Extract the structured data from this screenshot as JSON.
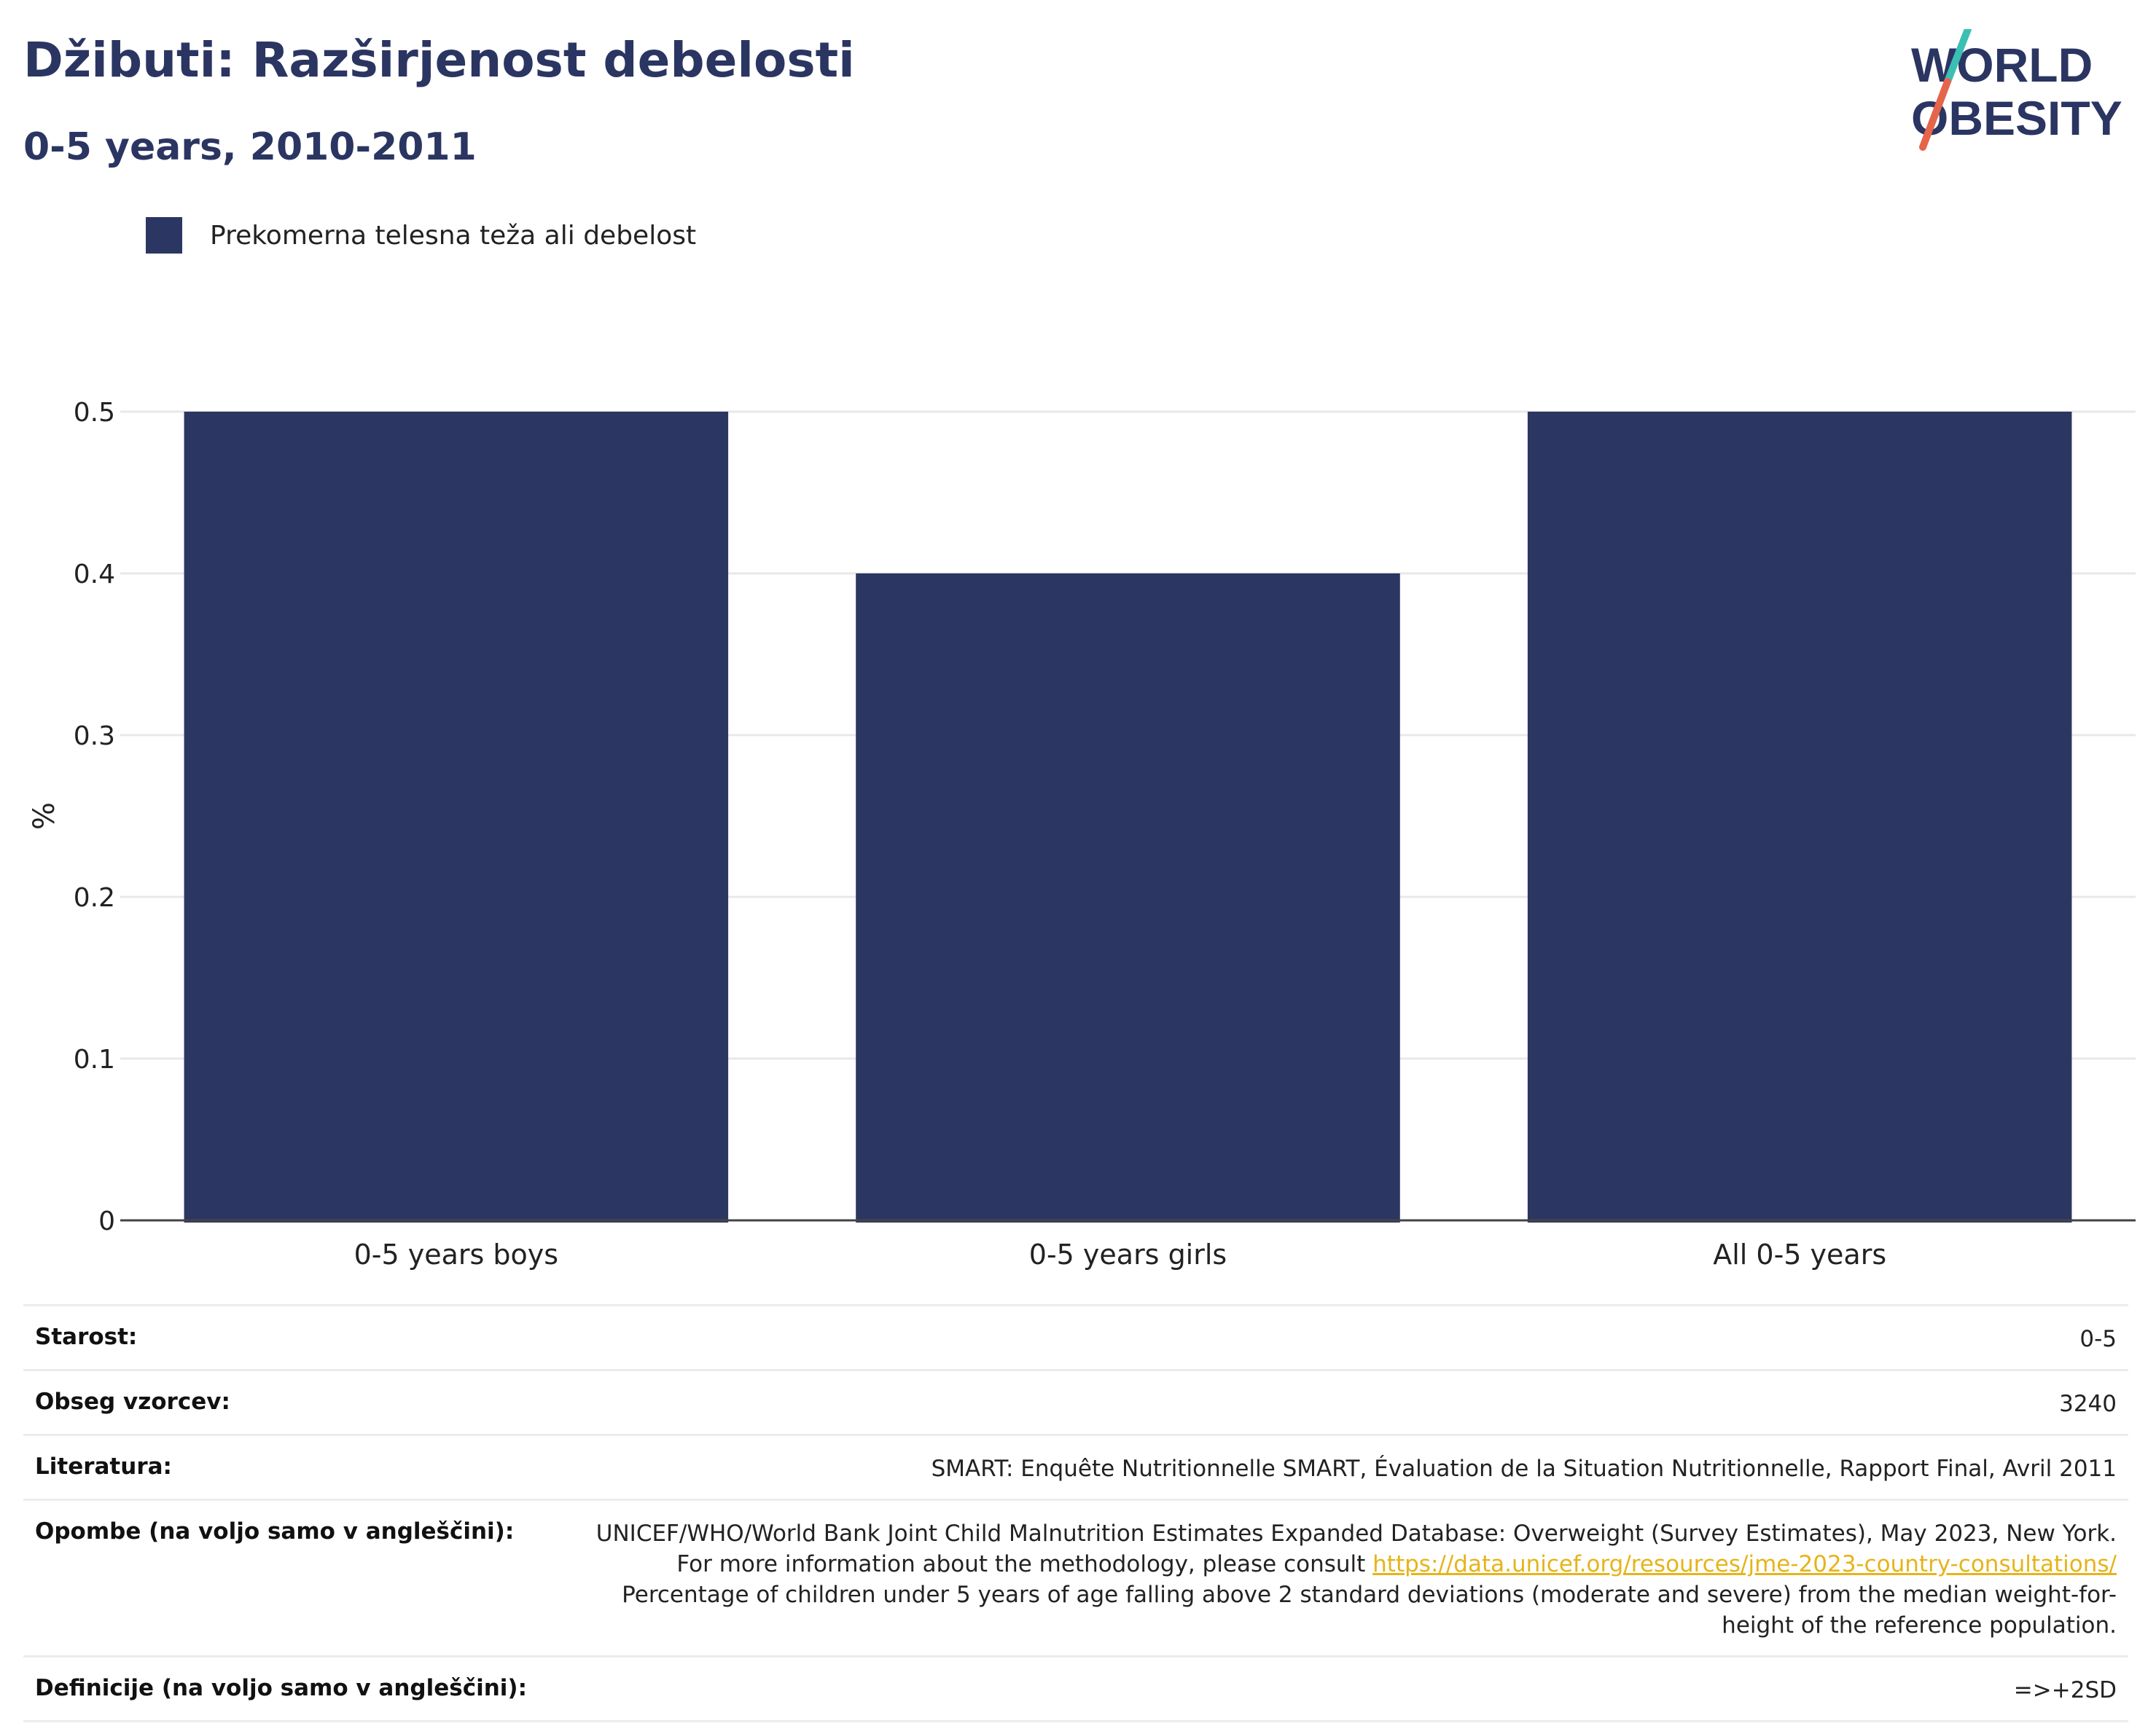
{
  "header": {
    "title": "Džibuti: Razširjenost debelosti",
    "subtitle": "0-5 years, 2010-2011"
  },
  "logo": {
    "line1": "WORLD",
    "line2": "OBESITY"
  },
  "legend": {
    "label": "Prekomerna telesna teža ali debelost",
    "color": "#2b3662"
  },
  "chart_data": {
    "type": "bar",
    "categories": [
      "0-5 years boys",
      "0-5 years girls",
      "All 0-5 years"
    ],
    "series": [
      {
        "name": "Prekomerna telesna teža ali debelost",
        "values": [
          0.5,
          0.4,
          0.5
        ],
        "color": "#2b3662"
      }
    ],
    "ylabel": "%",
    "ylim": [
      0,
      0.5
    ],
    "yticks": [
      "0",
      "0.1",
      "0.2",
      "0.3",
      "0.4",
      "0.5"
    ],
    "grid": true
  },
  "meta": {
    "age_label": "Starost:",
    "age_value": "0-5",
    "sample_label": "Obseg vzorcev:",
    "sample_value": "3240",
    "lit_label": "Literatura:",
    "lit_value": "SMART: Enquête Nutritionnelle SMART, Évaluation de la Situation Nutritionnelle, Rapport Final, Avril 2011",
    "notes_label": "Opombe (na voljo samo v angleščini):",
    "notes_text1": "UNICEF/WHO/World Bank Joint Child Malnutrition Estimates Expanded Database: Overweight (Survey Estimates), May 2023, New York. For more information about the methodology, please consult ",
    "notes_link": "https://data.unicef.org/resources/jme-2023-country-consultations/",
    "notes_text2": "Percentage of children under 5 years of age falling above 2 standard deviations (moderate and severe) from the median weight-for-height of the reference population.",
    "def_label": "Definicije (na voljo samo v angleščini):",
    "def_value": "=>+2SD"
  }
}
